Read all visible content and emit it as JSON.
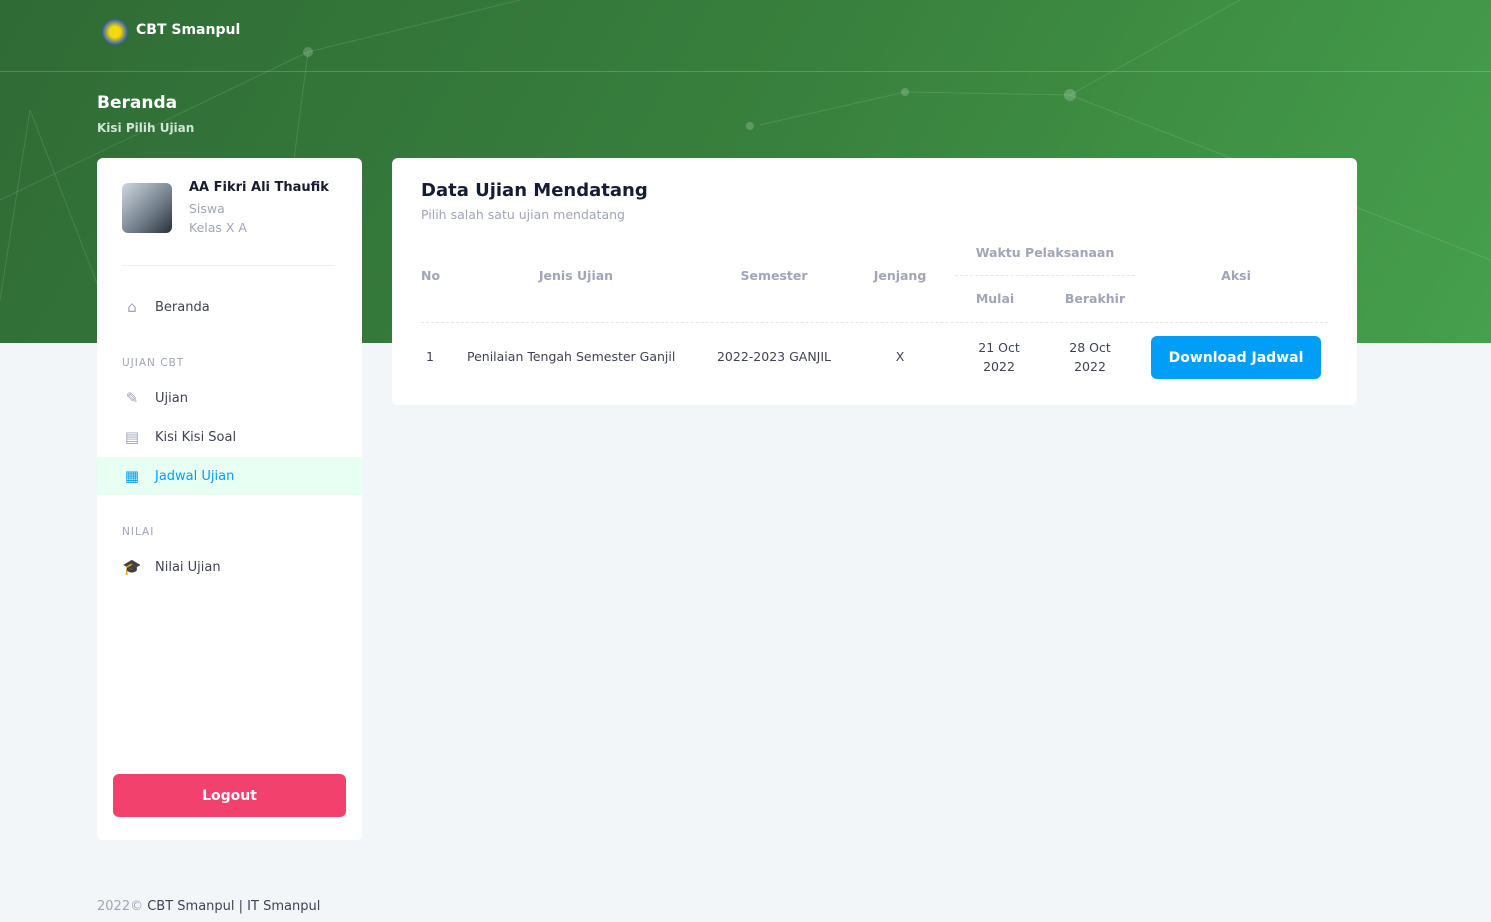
{
  "brand": "CBT Smanpul",
  "page": {
    "title": "Beranda",
    "breadcrumb": "Kisi  Pilih Ujian"
  },
  "user": {
    "name": "AA Fikri Ali Thaufik",
    "role": "Siswa",
    "class": "Kelas X A"
  },
  "sidebar": {
    "items": [
      {
        "label": "Beranda",
        "icon": "home-icon"
      },
      {
        "section": "UJIAN CBT"
      },
      {
        "label": "Ujian",
        "icon": "edit-icon"
      },
      {
        "label": "Kisi Kisi Soal",
        "icon": "document-icon"
      },
      {
        "label": "Jadwal Ujian",
        "icon": "calendar-icon",
        "active": true
      },
      {
        "section": "NILAI"
      },
      {
        "label": "Nilai Ujian",
        "icon": "graduation-cap-icon"
      }
    ],
    "logout": "Logout"
  },
  "main": {
    "title": "Data Ujian Mendatang",
    "subtitle": "Pilih salah satu ujian mendatang",
    "headers": {
      "no": "No",
      "jenis": "Jenis Ujian",
      "semester": "Semester",
      "jenjang": "Jenjang",
      "waktu": "Waktu Pelaksanaan",
      "mulai": "Mulai",
      "berakhir": "Berakhir",
      "aksi": "Aksi"
    },
    "rows": [
      {
        "no": "1",
        "jenis": "Penilaian Tengah Semester Ganjil",
        "semester": "2022-2023 GANJIL",
        "jenjang": "X",
        "mulai_1": "21 Oct",
        "mulai_2": "2022",
        "berakhir_1": "28 Oct",
        "berakhir_2": "2022",
        "action": "Download Jadwal"
      }
    ]
  },
  "footer": {
    "year": "2022©",
    "text": "CBT Smanpul | IT Smanpul"
  },
  "colors": {
    "primary": "#009ef7",
    "danger": "#f1416c",
    "hero": "#38803d"
  }
}
